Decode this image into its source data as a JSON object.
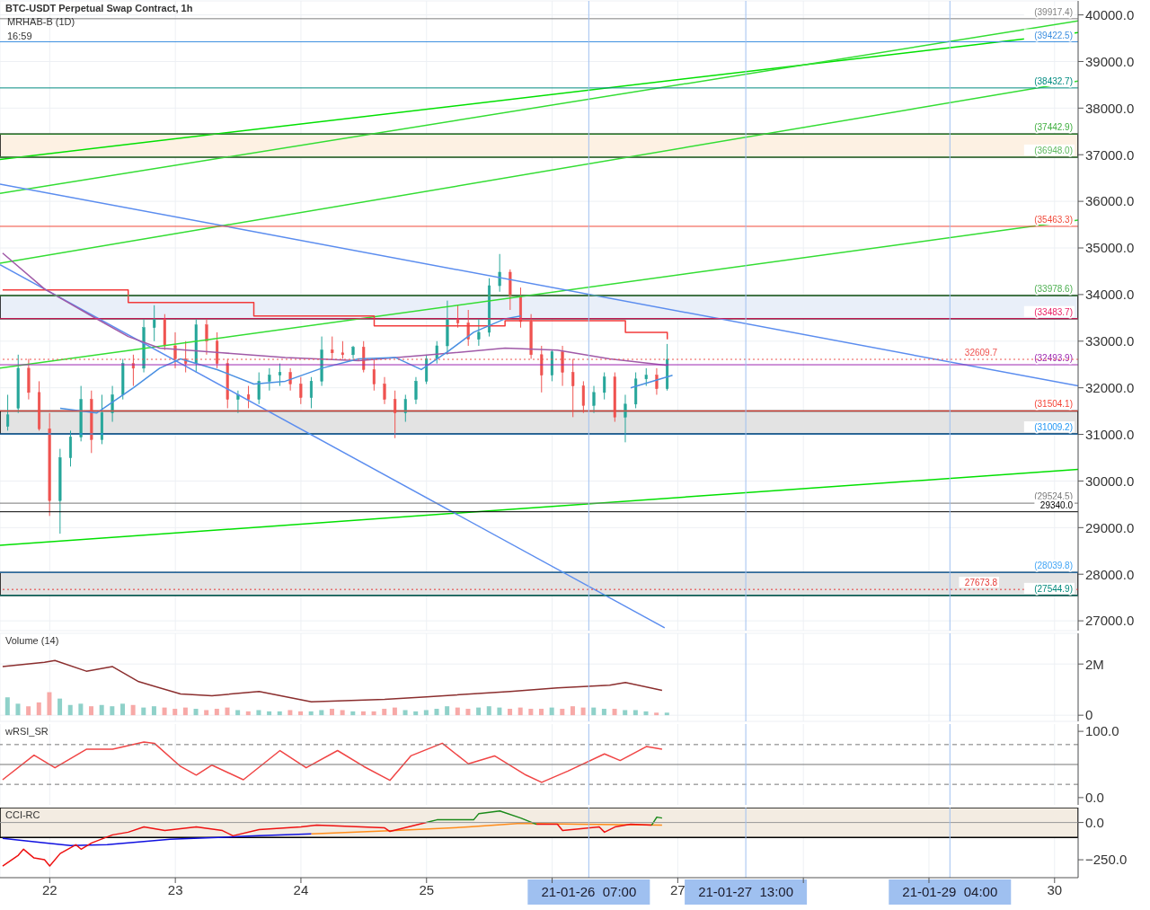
{
  "chart_data": [
    {
      "type": "candlestick",
      "title": "BTC-USDT Perpetual Swap Contract, 1h",
      "annotations": [
        "MRHAB-B (1D)",
        "16:59"
      ],
      "x": [
        "--01-21T16:00",
        "--01-21T18:00",
        "--01-21T20:00",
        "--01-21T22:00",
        "--01-22T00:00",
        "--01-22T02:00",
        "--01-22T04:00",
        "--01-22T06:00",
        "--01-22T08:00",
        "--01-22T10:00",
        "--01-22T12:00",
        "--01-22T14:00",
        "--01-22T16:00",
        "--01-22T18:00",
        "--01-22T20:00",
        "--01-22T22:00",
        "--01-23T00:00",
        "--01-23T02:00",
        "--01-23T04:00",
        "--01-23T06:00",
        "--01-23T08:00",
        "--01-23T10:00",
        "--01-23T12:00",
        "--01-23T14:00",
        "--01-23T16:00",
        "--01-23T18:00",
        "--01-23T20:00",
        "--01-23T22:00",
        "--01-24T00:00",
        "--01-24T02:00",
        "--01-24T04:00",
        "--01-24T06:00",
        "--01-24T08:00",
        "--01-24T10:00",
        "--01-24T12:00",
        "--01-24T14:00",
        "--01-24T16:00",
        "--01-24T18:00",
        "--01-24T20:00",
        "--01-24T22:00",
        "--01-25T00:00",
        "--01-25T02:00",
        "--01-25T04:00",
        "--01-25T06:00",
        "--01-25T08:00",
        "--01-25T10:00",
        "--01-25T12:00",
        "--01-25T14:00",
        "--01-25T16:00",
        "--01-25T18:00",
        "--01-25T20:00",
        "--01-25T22:00",
        "--01-26T00:00",
        "--01-26T02:00",
        "--01-26T04:00",
        "--01-26T06:00",
        "--01-26T08:00",
        "--01-26T10:00",
        "--01-26T12:00",
        "--01-26T14:00",
        "--01-26T16:00",
        "--01-26T18:00",
        "--01-26T20:00",
        "--01-26T22:00"
      ],
      "ohlc": [
        [
          31170,
          31850,
          31080,
          31420
        ],
        [
          31560,
          32710,
          31460,
          32420
        ],
        [
          32420,
          32620,
          31750,
          31900
        ],
        [
          31900,
          32140,
          31080,
          31120
        ],
        [
          31120,
          31460,
          29250,
          29580
        ],
        [
          29580,
          30690,
          28870,
          30500
        ],
        [
          30500,
          31080,
          30310,
          30940
        ],
        [
          30940,
          32040,
          30850,
          31750
        ],
        [
          31750,
          31940,
          30600,
          30890
        ],
        [
          30890,
          31850,
          30790,
          31460
        ],
        [
          31460,
          32040,
          31270,
          31850
        ],
        [
          31850,
          32620,
          31750,
          32520
        ],
        [
          32520,
          32710,
          32040,
          32420
        ],
        [
          32420,
          33480,
          32330,
          33290
        ],
        [
          33290,
          33770,
          33000,
          33480
        ],
        [
          33480,
          33580,
          32810,
          32900
        ],
        [
          32900,
          33190,
          32420,
          32620
        ],
        [
          32620,
          33000,
          32330,
          32520
        ],
        [
          32520,
          33480,
          32330,
          33350
        ],
        [
          33350,
          33480,
          32710,
          33000
        ],
        [
          33000,
          33190,
          32420,
          32520
        ],
        [
          32520,
          32620,
          31560,
          31750
        ],
        [
          31750,
          31940,
          31460,
          31850
        ],
        [
          31850,
          32040,
          31560,
          31750
        ],
        [
          31750,
          32330,
          31650,
          32140
        ],
        [
          32140,
          32420,
          31940,
          32270
        ],
        [
          32270,
          32520,
          32040,
          32330
        ],
        [
          32330,
          32420,
          31940,
          32080
        ],
        [
          32080,
          32230,
          31650,
          31790
        ],
        [
          31790,
          32230,
          31560,
          32140
        ],
        [
          32140,
          33100,
          32040,
          32810
        ],
        [
          32810,
          33100,
          32620,
          32750
        ],
        [
          32750,
          33000,
          32620,
          32710
        ],
        [
          32710,
          32900,
          32620,
          32870
        ],
        [
          32870,
          33000,
          32330,
          32390
        ],
        [
          32390,
          32620,
          31940,
          32080
        ],
        [
          32080,
          32230,
          31650,
          31750
        ],
        [
          31750,
          31940,
          30920,
          31460
        ],
        [
          31460,
          31850,
          31270,
          31750
        ],
        [
          31750,
          32230,
          31650,
          32140
        ],
        [
          32140,
          32710,
          32080,
          32620
        ],
        [
          32620,
          33000,
          32520,
          32900
        ],
        [
          32900,
          33870,
          32710,
          33480
        ],
        [
          33480,
          33770,
          33290,
          33390
        ],
        [
          33390,
          33670,
          32900,
          33040
        ],
        [
          33040,
          33480,
          32900,
          33190
        ],
        [
          33190,
          34350,
          33100,
          34190
        ],
        [
          34190,
          34870,
          34060,
          34480
        ],
        [
          34480,
          34540,
          33670,
          33960
        ],
        [
          33960,
          34150,
          33290,
          33420
        ],
        [
          33420,
          33580,
          32620,
          32710
        ],
        [
          32710,
          32900,
          31900,
          32270
        ],
        [
          32270,
          32810,
          32140,
          32770
        ],
        [
          32770,
          32900,
          32040,
          32330
        ],
        [
          32330,
          32620,
          31370,
          32040
        ],
        [
          32040,
          32140,
          31460,
          31620
        ],
        [
          31620,
          32040,
          31460,
          31900
        ],
        [
          31900,
          32330,
          31750,
          32230
        ],
        [
          32230,
          32330,
          31270,
          31370
        ],
        [
          31370,
          31850,
          30830,
          31650
        ],
        [
          31650,
          32330,
          31560,
          32190
        ],
        [
          32190,
          32420,
          32040,
          32270
        ],
        [
          32270,
          32420,
          31850,
          31980
        ],
        [
          31980,
          32940,
          31940,
          32609.7
        ]
      ],
      "colors": [
        "#26a69a",
        "#26a69a",
        "#ef5350",
        "#ef5350",
        "#ef5350",
        "#26a69a",
        "#26a69a",
        "#26a69a",
        "#ef5350",
        "#26a69a",
        "#26a69a",
        "#26a69a",
        "#ef5350",
        "#26a69a",
        "#26a69a",
        "#ef5350",
        "#ef5350",
        "#ef5350",
        "#26a69a",
        "#ef5350",
        "#ef5350",
        "#ef5350",
        "#26a69a",
        "#ef5350",
        "#26a69a",
        "#26a69a",
        "#26a69a",
        "#ef5350",
        "#ef5350",
        "#26a69a",
        "#26a69a",
        "#ef5350",
        "#ef5350",
        "#26a69a",
        "#ef5350",
        "#ef5350",
        "#ef5350",
        "#ef5350",
        "#26a69a",
        "#26a69a",
        "#26a69a",
        "#26a69a",
        "#26a69a",
        "#ef5350",
        "#ef5350",
        "#26a69a",
        "#26a69a",
        "#26a69a",
        "#ef5350",
        "#ef5350",
        "#ef5350",
        "#ef5350",
        "#26a69a",
        "#ef5350",
        "#ef5350",
        "#ef5350",
        "#26a69a",
        "#26a69a",
        "#ef5350",
        "#26a69a",
        "#26a69a",
        "#26a69a",
        "#ef5350",
        "#26a69a"
      ],
      "series": [
        {
          "type": "line",
          "color": "#00e000",
          "x": [
            "--01-21T14:30",
            "--01-30T04:30"
          ],
          "values": [
            36900,
            39620
          ]
        },
        {
          "type": "line",
          "color": "#33dd33",
          "x": [
            "--01-21T14:30",
            "--01-30T04:30"
          ],
          "values": [
            36170,
            39870
          ]
        },
        {
          "type": "line",
          "color": "#33dd33",
          "x": [
            "--01-21T14:30",
            "--01-30T04:30"
          ],
          "values": [
            34670,
            38580
          ]
        },
        {
          "type": "line",
          "color": "#33dd33",
          "x": [
            "--01-21T14:30",
            "--01-30T04:30"
          ],
          "values": [
            32420,
            35600
          ]
        },
        {
          "type": "line",
          "color": "#00e000",
          "x": [
            "--01-21T14:30",
            "--01-30T04:30"
          ],
          "values": [
            28620,
            30250
          ]
        },
        {
          "type": "line",
          "color": "#5b8def",
          "x": [
            "--01-21T14:30",
            "--01-30T04:30"
          ],
          "values": [
            36370,
            32040
          ]
        },
        {
          "type": "line",
          "color": "#5b8def",
          "x": [
            "--01-21T14:30",
            "--01-26T21:30"
          ],
          "values": [
            34640,
            26850
          ]
        },
        {
          "type": "step",
          "color": "#f23b3b",
          "x": [
            "--01-21T15:00",
            "--01-22T15:00",
            "--01-23T15:00",
            "--01-24T14:00",
            "--01-25T15:00",
            "--01-26T14:00",
            "--01-26T22:00"
          ],
          "values": [
            34100,
            33830,
            33540,
            33330,
            33440,
            33190,
            33040
          ]
        },
        {
          "type": "line",
          "color": "#a05aa8",
          "x": [
            "--01-21T15:00",
            "--01-21T23:00",
            "--01-22T08:00",
            "--01-22T15:00",
            "--01-22T21:00",
            "--01-23T09:00",
            "--01-23T21:00",
            "--01-24T11:00",
            "--01-25T01:00",
            "--01-25T15:00",
            "--01-26T01:00",
            "--01-26T11:00",
            "--01-26T22:00"
          ],
          "values": [
            34890,
            34120,
            33540,
            33100,
            32850,
            32750,
            32650,
            32580,
            32710,
            32850,
            32810,
            32620,
            32480
          ]
        },
        {
          "type": "line",
          "color": "#4a90e2",
          "x": [
            "--01-22T02:00",
            "--01-22T09:00",
            "--01-22T16:00",
            "--01-22T21:00",
            "--01-23T01:00",
            "--01-23T08:00",
            "--01-23T15:00",
            "--01-23T21:00",
            "--01-24T04:00",
            "--01-24T11:00",
            "--01-24T18:00",
            "--01-24T23:00",
            "--01-25T04:00",
            "--01-25T09:00",
            "--01-25T15:00",
            "--01-25T18:00",
            "--01-26T06:00",
            "--01-26T15:00",
            "--01-26T23:00"
          ],
          "values": [
            31560,
            31460,
            32000,
            32420,
            32620,
            32390,
            32080,
            32140,
            32420,
            32620,
            32650,
            32390,
            32770,
            33190,
            33480,
            33540,
            null,
            32000,
            32270
          ]
        }
      ],
      "xlim": [
        "--01-21T14:30",
        "--01-30T04:30"
      ],
      "xticks": [
        "--01-22",
        "--01-23",
        "--01-24",
        "--01-25",
        "--01-26",
        "--01-27",
        "--01-28",
        "--01-29",
        "--01-30"
      ],
      "ylim": [
        26790,
        40300
      ],
      "yticks": [
        {
          "value": 27000,
          "label": "27000.0"
        },
        {
          "value": 28000,
          "label": "28000.0"
        },
        {
          "value": 29000,
          "label": "29000.0"
        },
        {
          "value": 30000,
          "label": "30000.0"
        },
        {
          "value": 31000,
          "label": "31000.0"
        },
        {
          "value": 32000,
          "label": "32000.0"
        },
        {
          "value": 33000,
          "label": "33000.0"
        },
        {
          "value": 34000,
          "label": "34000.0"
        },
        {
          "value": 35000,
          "label": "35000.0"
        },
        {
          "value": 36000,
          "label": "36000.0"
        },
        {
          "value": 37000,
          "label": "37000.0"
        },
        {
          "value": 38000,
          "label": "38000.0"
        },
        {
          "value": 39000,
          "label": "39000.0"
        },
        {
          "value": 40000,
          "label": "40000.0"
        }
      ],
      "tick_labels": "y",
      "grid": true,
      "bands": [
        {
          "axis": "y",
          "from": 36948,
          "to": 37442.9,
          "color": "#fdf1e3"
        },
        {
          "axis": "y",
          "from": 33483.7,
          "to": 33978.6,
          "color": "#e9eff9"
        },
        {
          "axis": "y",
          "from": 31009.2,
          "to": 31504.1,
          "color": "#e3e3e3"
        },
        {
          "axis": "y",
          "from": 27544.9,
          "to": 28039.8,
          "color": "#e3e3e3"
        }
      ],
      "ref_lines": [
        {
          "axis": "y",
          "value": 39917.4,
          "label": "(39917.4)",
          "color": "#808080"
        },
        {
          "axis": "y",
          "value": 39422.5,
          "label": "(39422.5)",
          "color": "#3d8fe0"
        },
        {
          "axis": "y",
          "value": 38432.7,
          "label": "(38432.7)",
          "color": "#008b80"
        },
        {
          "axis": "y",
          "value": 37442.9,
          "label": "(37442.9)",
          "color": "#3fae3f"
        },
        {
          "axis": "y",
          "value": 36948.0,
          "label": "(36948.0)",
          "color": "#5cb85c"
        },
        {
          "axis": "y",
          "value": 35463.3,
          "label": "(35463.3)",
          "color": "#f04a3a"
        },
        {
          "axis": "y",
          "value": 33978.6,
          "label": "(33978.6)",
          "color": "#4caf50"
        },
        {
          "axis": "y",
          "value": 33483.7,
          "label": "(33483.7)",
          "color": "#e91e63"
        },
        {
          "axis": "y",
          "value": 32493.9,
          "label": "(32493.9)",
          "color": "#9c27b0"
        },
        {
          "axis": "y",
          "value": 32609.7,
          "label": "32609.7",
          "color": "#ef5350",
          "line_style": "dotted"
        },
        {
          "axis": "y",
          "value": 31504.1,
          "label": "(31504.1)",
          "color": "#f44336"
        },
        {
          "axis": "y",
          "value": 31009.2,
          "label": "(31009.2)",
          "color": "#2196f3"
        },
        {
          "axis": "y",
          "value": 29524.5,
          "label": "(29524.5)",
          "color": "#787878"
        },
        {
          "axis": "y",
          "value": 29340.0,
          "label": "29340.0",
          "color": "#000000"
        },
        {
          "axis": "y",
          "value": 28039.8,
          "label": "(28039.8)",
          "color": "#42a5f5"
        },
        {
          "axis": "y",
          "value": 27673.8,
          "label": "27673.8",
          "color": "#e53935",
          "line_style": "dotted"
        },
        {
          "axis": "y",
          "value": 27544.9,
          "label": "(27544.9)",
          "color": "#00897b"
        },
        {
          "axis": "x",
          "value": "--01-26T07:00",
          "color": "#9fc0f0"
        },
        {
          "axis": "x",
          "value": "--01-27T13:00",
          "color": "#9fc0f0"
        },
        {
          "axis": "x",
          "value": "--01-29T04:00",
          "color": "#9fc0f0"
        }
      ]
    },
    {
      "type": "bar",
      "title": "Volume (14)",
      "x": [
        "--01-21T16:00",
        "--01-21T18:00",
        "--01-21T20:00",
        "--01-21T22:00",
        "--01-22T00:00",
        "--01-22T02:00",
        "--01-22T04:00",
        "--01-22T06:00",
        "--01-22T08:00",
        "--01-22T10:00",
        "--01-22T12:00",
        "--01-22T14:00",
        "--01-22T16:00",
        "--01-22T18:00",
        "--01-22T20:00",
        "--01-22T22:00",
        "--01-23T00:00",
        "--01-23T02:00",
        "--01-23T04:00",
        "--01-23T06:00",
        "--01-23T08:00",
        "--01-23T10:00",
        "--01-23T12:00",
        "--01-23T14:00",
        "--01-23T16:00",
        "--01-23T18:00",
        "--01-23T20:00",
        "--01-23T22:00",
        "--01-24T00:00",
        "--01-24T02:00",
        "--01-24T04:00",
        "--01-24T06:00",
        "--01-24T08:00",
        "--01-24T10:00",
        "--01-24T12:00",
        "--01-24T14:00",
        "--01-24T16:00",
        "--01-24T18:00",
        "--01-24T20:00",
        "--01-24T22:00",
        "--01-25T00:00",
        "--01-25T02:00",
        "--01-25T04:00",
        "--01-25T06:00",
        "--01-25T08:00",
        "--01-25T10:00",
        "--01-25T12:00",
        "--01-25T14:00",
        "--01-25T16:00",
        "--01-25T18:00",
        "--01-25T20:00",
        "--01-25T22:00",
        "--01-26T00:00",
        "--01-26T02:00",
        "--01-26T04:00",
        "--01-26T06:00",
        "--01-26T08:00",
        "--01-26T10:00",
        "--01-26T12:00",
        "--01-26T14:00",
        "--01-26T16:00",
        "--01-26T18:00",
        "--01-26T20:00",
        "--01-26T22:00"
      ],
      "values": [
        700000,
        450000,
        350000,
        500000,
        900000,
        650000,
        400000,
        450000,
        350000,
        400000,
        350000,
        450000,
        400000,
        300000,
        350000,
        300000,
        250000,
        300000,
        250000,
        200000,
        250000,
        300000,
        200000,
        150000,
        200000,
        150000,
        150000,
        200000,
        150000,
        150000,
        200000,
        250000,
        200000,
        150000,
        150000,
        150000,
        250000,
        300000,
        200000,
        150000,
        200000,
        250000,
        350000,
        300000,
        250000,
        300000,
        350000,
        300000,
        250000,
        300000,
        250000,
        250000,
        300000,
        250000,
        350000,
        300000,
        300000,
        250000,
        250000,
        200000,
        200000,
        150000,
        100000,
        100000
      ],
      "colors": [
        "#8fd1c9",
        "#8fd1c9",
        "#f7a9a7",
        "#f7a9a7",
        "#f7a9a7",
        "#8fd1c9",
        "#8fd1c9",
        "#8fd1c9",
        "#f7a9a7",
        "#8fd1c9",
        "#8fd1c9",
        "#8fd1c9",
        "#f7a9a7",
        "#8fd1c9",
        "#8fd1c9",
        "#f7a9a7",
        "#f7a9a7",
        "#f7a9a7",
        "#8fd1c9",
        "#f7a9a7",
        "#f7a9a7",
        "#f7a9a7",
        "#8fd1c9",
        "#f7a9a7",
        "#8fd1c9",
        "#8fd1c9",
        "#8fd1c9",
        "#f7a9a7",
        "#f7a9a7",
        "#8fd1c9",
        "#8fd1c9",
        "#f7a9a7",
        "#f7a9a7",
        "#8fd1c9",
        "#f7a9a7",
        "#f7a9a7",
        "#f7a9a7",
        "#f7a9a7",
        "#8fd1c9",
        "#8fd1c9",
        "#8fd1c9",
        "#8fd1c9",
        "#8fd1c9",
        "#f7a9a7",
        "#f7a9a7",
        "#8fd1c9",
        "#8fd1c9",
        "#8fd1c9",
        "#f7a9a7",
        "#f7a9a7",
        "#f7a9a7",
        "#f7a9a7",
        "#8fd1c9",
        "#f7a9a7",
        "#f7a9a7",
        "#f7a9a7",
        "#8fd1c9",
        "#8fd1c9",
        "#f7a9a7",
        "#8fd1c9",
        "#8fd1c9",
        "#8fd1c9",
        "#f7a9a7",
        "#8fd1c9"
      ],
      "series": [
        {
          "type": "line",
          "color": "#8b2e2e",
          "x": [
            "--01-21T15:00",
            "--01-21T23:00",
            "--01-22T01:00",
            "--01-22T07:00",
            "--01-22T12:00",
            "--01-22T17:00",
            "--01-23T01:00",
            "--01-23T07:00",
            "--01-23T16:00",
            "--01-24T02:00",
            "--01-24T16:00",
            "--01-25T00:00",
            "--01-25T16:00",
            "--01-26T01:00",
            "--01-26T11:00",
            "--01-26T14:00",
            "--01-26T21:00"
          ],
          "values": [
            1900000,
            2070000,
            2140000,
            1720000,
            1900000,
            1310000,
            830000,
            760000,
            930000,
            520000,
            620000,
            720000,
            930000,
            1070000,
            1170000,
            1280000,
            970000
          ]
        }
      ],
      "xlim": [
        "--01-21T14:30",
        "--01-30T04:30"
      ],
      "xticks": [
        "--01-22",
        "--01-23",
        "--01-24",
        "--01-25",
        "--01-26",
        "--01-27",
        "--01-28",
        "--01-29",
        "--01-30"
      ],
      "ylim": [
        -240000,
        3200000
      ],
      "yticks": [
        0,
        {
          "value": 2000000,
          "label": "2M"
        }
      ],
      "tick_labels": "y",
      "grid": true,
      "ref_lines": [
        {
          "axis": "x",
          "value": "--01-26T07:00",
          "color": "#9fc0f0"
        },
        {
          "axis": "x",
          "value": "--01-27T13:00",
          "color": "#9fc0f0"
        },
        {
          "axis": "x",
          "value": "--01-29T04:00",
          "color": "#9fc0f0"
        }
      ]
    },
    {
      "type": "line",
      "title": "wRSI_SR",
      "series": [
        {
          "color": "#f04545",
          "x": [
            "--01-21T15:00",
            "--01-21T21:00",
            "--01-22T01:00",
            "--01-22T07:00",
            "--01-22T12:00",
            "--01-22T18:00",
            "--01-22T20:00",
            "--01-23T01:00",
            "--01-23T04:00",
            "--01-23T07:00",
            "--01-23T13:00",
            "--01-23T20:00",
            "--01-24T01:00",
            "--01-24T07:00",
            "--01-24T12:00",
            "--01-24T17:00",
            "--01-24T21:00",
            "--01-25T03:00",
            "--01-25T08:00",
            "--01-25T13:00",
            "--01-25T19:00",
            "--01-25T22:00",
            "--01-26T03:00",
            "--01-26T10:00",
            "--01-26T13:00",
            "--01-26T18:00",
            "--01-26T21:00"
          ],
          "values": [
            27,
            64,
            45,
            73,
            73,
            84,
            82,
            47,
            34,
            49,
            27,
            71,
            45,
            71,
            47,
            26,
            63,
            82,
            51,
            63,
            34,
            23,
            40,
            66,
            56,
            77,
            73
          ]
        }
      ],
      "xlim": [
        "--01-21T14:30",
        "--01-30T04:30"
      ],
      "xticks": [
        "--01-22",
        "--01-23",
        "--01-24",
        "--01-25",
        "--01-26",
        "--01-27",
        "--01-28",
        "--01-29",
        "--01-30"
      ],
      "ylim": [
        -11,
        111
      ],
      "yticks": [
        {
          "value": 0,
          "label": "0.0"
        },
        {
          "value": 100,
          "label": "100.0"
        }
      ],
      "tick_labels": "y",
      "grid": "x",
      "ref_lines": [
        {
          "axis": "y",
          "value": 80,
          "color": "#777777",
          "line_style": "dashed"
        },
        {
          "axis": "y",
          "value": 50,
          "color": "#777777"
        },
        {
          "axis": "y",
          "value": 20,
          "color": "#777777",
          "line_style": "dashed"
        },
        {
          "axis": "x",
          "value": "--01-26T07:00",
          "color": "#9fc0f0"
        },
        {
          "axis": "x",
          "value": "--01-27T13:00",
          "color": "#9fc0f0"
        },
        {
          "axis": "x",
          "value": "--01-29T04:00",
          "color": "#9fc0f0"
        }
      ]
    },
    {
      "type": "line",
      "title": "CCI-RC",
      "series": [
        {
          "color": "#1010e0",
          "x": [
            "--01-21T15:00",
            "--01-21T23:00",
            "--01-22T04:00",
            "--01-22T11:00",
            "--01-22T23:00",
            "--01-23T16:00",
            "--01-24T02:00"
          ],
          "values": [
            -107,
            -137,
            -155,
            -149,
            -113,
            -89,
            -77
          ]
        },
        {
          "color": "#ff8c1a",
          "x": [
            "--01-24T02:00",
            "--01-24T18:00",
            "--01-25T08:00",
            "--01-25T18:00",
            "--01-26T05:00",
            "--01-26T21:00"
          ],
          "values": [
            -77,
            -54,
            -30,
            -6,
            -12,
            -18
          ]
        },
        {
          "color": "#ee1111",
          "x": [
            "--01-21T15:00",
            "--01-21T18:00",
            "--01-21T19:00",
            "--01-21T21:00",
            "--01-21T23:00",
            "--01-22T00:00",
            "--01-22T02:00",
            "--01-22T05:00",
            "--01-22T06:00",
            "--01-22T08:00",
            "--01-22T12:00",
            "--01-22T15:00",
            "--01-22T18:00",
            "--01-22T22:00",
            "--01-23T04:00",
            "--01-23T09:00",
            "--01-23T11:00",
            "--01-23T16:00",
            "--01-24T00:00",
            "--01-24T03:00",
            "--01-24T16:00",
            "--01-24T17:00",
            "--01-25T00:00",
            "--01-25T12:00",
            "--01-25T21:00",
            "--01-26T01:00",
            "--01-26T02:00",
            "--01-26T09:00",
            "--01-26T10:00",
            "--01-26T12:00",
            "--01-26T15:00",
            "--01-26T19:00"
          ],
          "values": [
            -292,
            -220,
            -179,
            -238,
            -250,
            -292,
            -208,
            -149,
            -179,
            -137,
            -83,
            -65,
            -30,
            -54,
            -30,
            -54,
            -89,
            -48,
            -30,
            -18,
            -36,
            -60,
            0,
            null,
            -12,
            -12,
            -54,
            -30,
            -65,
            -30,
            -12,
            -18
          ]
        },
        {
          "color": "#1a8a1a",
          "x": [
            "--01-25T00:00",
            "--01-25T02:00",
            "--01-25T09:00",
            "--01-25T10:00",
            "--01-25T14:00",
            "--01-25T18:00",
            "--01-25T21:00",
            "--01-26T10:00",
            "--01-26T19:00",
            "--01-26T20:00",
            "--01-26T21:00"
          ],
          "values": [
            0,
            18,
            18,
            60,
            77,
            30,
            -12,
            null,
            -18,
            36,
            30
          ]
        }
      ],
      "xlim": [
        "--01-21T14:30",
        "--01-30T04:30"
      ],
      "xticks": [
        {
          "value": "--01-22",
          "label": "22"
        },
        {
          "value": "--01-23",
          "label": "23"
        },
        {
          "value": "--01-24",
          "label": "24"
        },
        {
          "value": "--01-25",
          "label": "25"
        },
        {
          "value": "--01-26",
          "label": null
        },
        {
          "value": "--01-27",
          "label": "27"
        },
        {
          "value": "--01-28",
          "label": null
        },
        {
          "value": "--01-29",
          "label": null
        },
        {
          "value": "--01-30",
          "label": "30"
        }
      ],
      "ylim": [
        -370,
        100
      ],
      "yticks": [
        {
          "value": -250,
          "label": "−250.0"
        },
        {
          "value": 0,
          "label": "0.0"
        }
      ],
      "grid": "x",
      "bands": [
        {
          "axis": "y",
          "from": -100,
          "to": 100,
          "color": "#f3ece2"
        }
      ],
      "ref_lines": [
        {
          "axis": "y",
          "value": 0,
          "color": "#999999"
        },
        {
          "axis": "x",
          "value": "--01-26T07:00",
          "label": "21-01-26  07:00",
          "color": "#9fc0f0"
        },
        {
          "axis": "x",
          "value": "--01-27T13:00",
          "label": "21-01-27  13:00",
          "color": "#9fc0f0"
        },
        {
          "axis": "x",
          "value": "--01-29T04:00",
          "label": "21-01-29  04:00",
          "color": "#9fc0f0"
        }
      ]
    }
  ]
}
